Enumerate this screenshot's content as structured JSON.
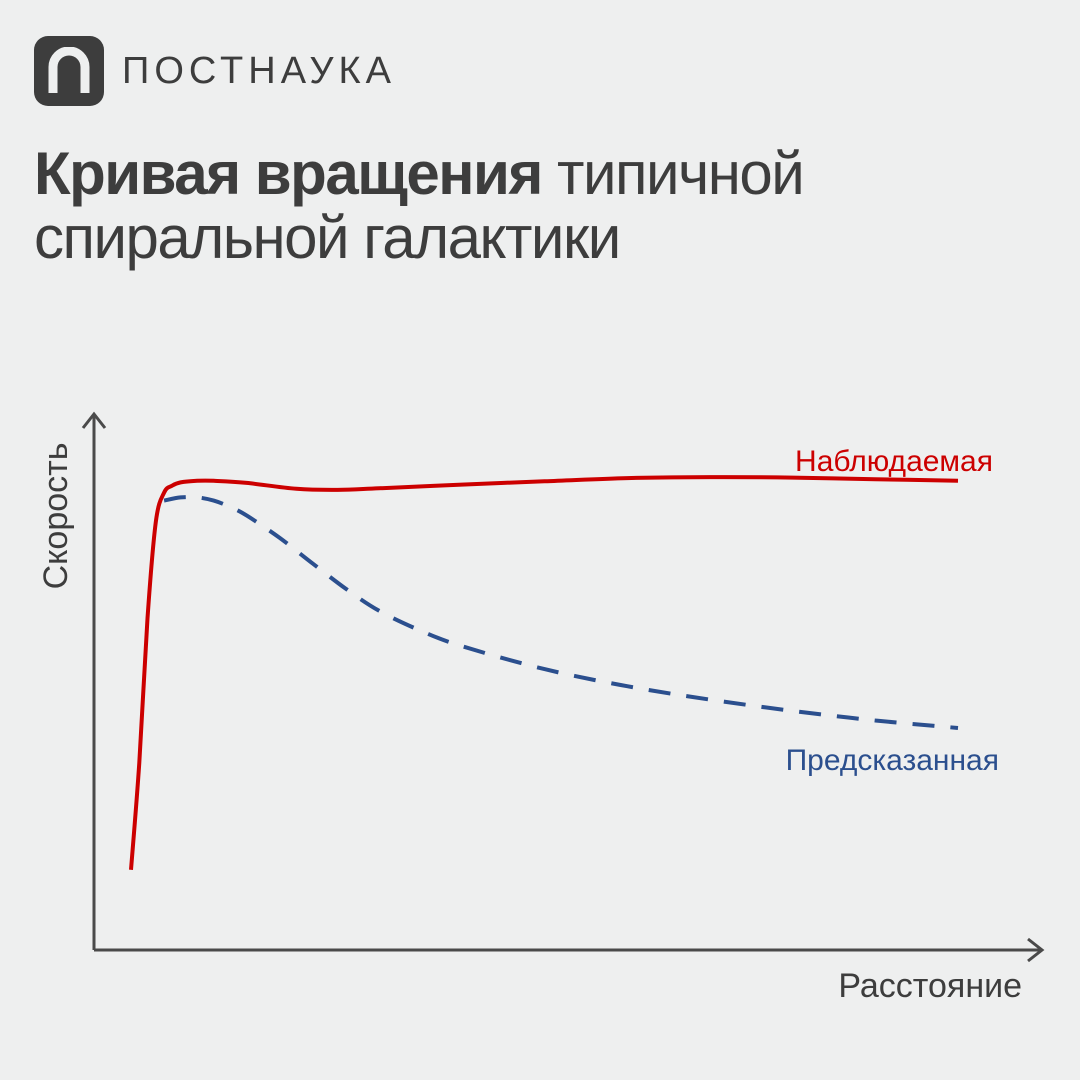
{
  "brand": {
    "name": "ПОСТНАУКА",
    "logo_icon": "n-letter-icon",
    "logo_color": "#3d3d3d"
  },
  "title": {
    "bold": "Кривая вращения",
    "regular": "типичной спиральной галактики"
  },
  "chart_data": {
    "type": "line",
    "xlabel": "Расстояние",
    "ylabel": "Скорость",
    "xlim": [
      0,
      100
    ],
    "ylim": [
      0,
      100
    ],
    "grid": false,
    "axis_ticks": false,
    "series": [
      {
        "name": "Наблюдаемая",
        "color": "#cc0000",
        "style": "solid",
        "x": [
          0,
          1,
          2,
          3,
          4,
          5,
          6,
          8,
          10,
          14,
          20,
          25,
          30,
          40,
          50,
          60,
          70,
          80,
          90,
          100
        ],
        "y": [
          15,
          35,
          62,
          80,
          85.5,
          86.8,
          87.4,
          87.7,
          87.7,
          87.3,
          86.2,
          86,
          86.3,
          87,
          87.6,
          88.2,
          88.4,
          88.3,
          88,
          87.7
        ]
      },
      {
        "name": "Предсказанная",
        "color": "#2b4f8e",
        "style": "dashed",
        "x": [
          4,
          6,
          8,
          10,
          12,
          14,
          18,
          22,
          26,
          30,
          35,
          40,
          50,
          60,
          70,
          80,
          90,
          100
        ],
        "y": [
          84,
          84.6,
          84.6,
          84,
          82.8,
          81.2,
          77,
          72.2,
          67.5,
          63.4,
          59.7,
          56.8,
          52.5,
          49.3,
          46.8,
          44.7,
          42.9,
          41.5
        ]
      }
    ]
  }
}
